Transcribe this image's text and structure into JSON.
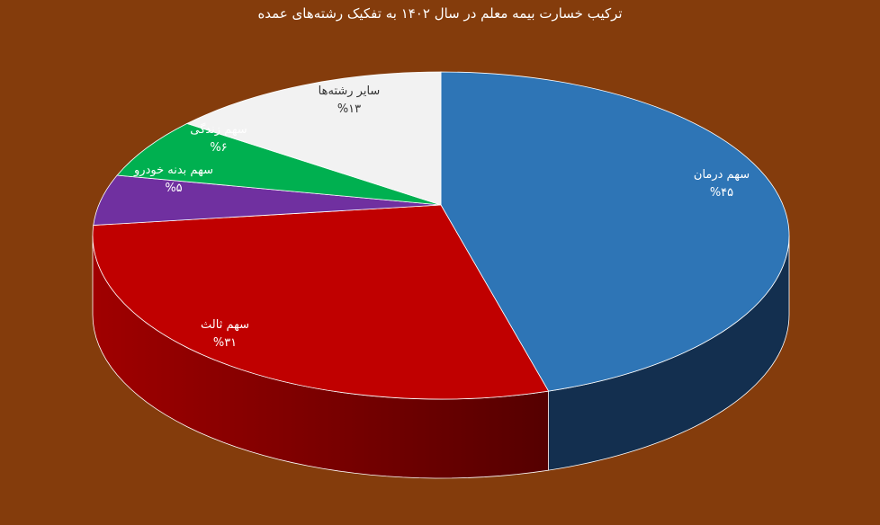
{
  "chart_data": {
    "type": "pie",
    "style": "3d",
    "title": "ترکیب خسارت بیمه معلم در سال ۱۴۰۲ به تفکیک رشته‌های عمده",
    "slices": [
      {
        "label": "سهم درمان",
        "value": 45,
        "value_label": "%۴۵",
        "color": "#2e75b6",
        "side_color": "#132f4f",
        "text_color": "#ffffff"
      },
      {
        "label": "سهم ثالث",
        "value": 31,
        "value_label": "%۳۱",
        "color": "#c00000",
        "side_color": "#8b0000",
        "text_color": "#ffffff"
      },
      {
        "label": "سهم بدنه خودرو",
        "value": 5,
        "value_label": "%۵",
        "color": "#7030a0",
        "side_color": "#4b1f6e",
        "text_color": "#ffffff"
      },
      {
        "label": "سهم زندگی",
        "value": 6,
        "value_label": "%۶",
        "color": "#00b050",
        "side_color": "#007a37",
        "text_color": "#ffffff"
      },
      {
        "label": "سایر رشته‌ها",
        "value": 13,
        "value_label": "%۱۳",
        "color": "#f2f2f2",
        "side_color": "#bfbfbf",
        "text_color": "#333333"
      }
    ],
    "background": "#843c0c"
  }
}
